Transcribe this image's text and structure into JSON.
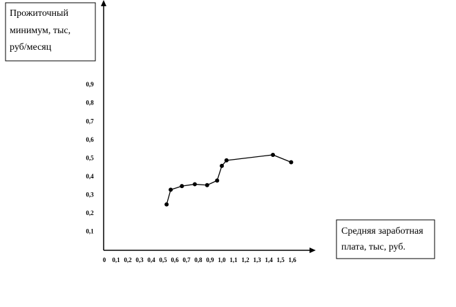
{
  "chart_data": {
    "type": "line",
    "y_label": [
      "Прожиточный",
      "минимум, тыс,",
      "руб/месяц"
    ],
    "x_label": [
      "Средняя заработная",
      "плата, тыс, руб."
    ],
    "x": [
      0.53,
      0.565,
      0.66,
      0.77,
      0.875,
      0.96,
      1.0,
      1.04,
      1.435,
      1.59
    ],
    "series": [
      {
        "color": "#000000",
        "values": [
          0.25,
          0.33,
          0.35,
          0.36,
          0.355,
          0.38,
          0.46,
          0.49,
          0.52,
          0.48
        ]
      }
    ],
    "xlim": [
      0,
      1.77
    ],
    "ylim": [
      0,
      1.36
    ],
    "xticks": [
      0,
      {
        "value": 0.1,
        "label": "0,1"
      },
      {
        "value": 0.2,
        "label": "0,2"
      },
      {
        "value": 0.3,
        "label": "0,3"
      },
      {
        "value": 0.4,
        "label": "0,4"
      },
      {
        "value": 0.5,
        "label": "0,5"
      },
      {
        "value": 0.6,
        "label": "0,6"
      },
      {
        "value": 0.7,
        "label": "0,7"
      },
      {
        "value": 0.8,
        "label": "0,8"
      },
      {
        "value": 0.9,
        "label": "0,9"
      },
      {
        "value": 1.0,
        "label": "1,0"
      },
      {
        "value": 1.1,
        "label": "1,1"
      },
      {
        "value": 1.2,
        "label": "1,2"
      },
      {
        "value": 1.3,
        "label": "1,3"
      },
      {
        "value": 1.4,
        "label": "1,4"
      },
      {
        "value": 1.5,
        "label": "1,5"
      },
      {
        "value": 1.6,
        "label": "1,6"
      }
    ],
    "yticks": [
      {
        "value": 0.1,
        "label": "0,1"
      },
      {
        "value": 0.2,
        "label": "0,2"
      },
      {
        "value": 0.3,
        "label": "0,3"
      },
      {
        "value": 0.4,
        "label": "0,4"
      },
      {
        "value": 0.5,
        "label": "0,5"
      },
      {
        "value": 0.6,
        "label": "0,6"
      },
      {
        "value": 0.7,
        "label": "0,7"
      },
      {
        "value": 0.8,
        "label": "0,8"
      },
      {
        "value": 0.9,
        "label": "0,9"
      }
    ],
    "grid": false
  }
}
